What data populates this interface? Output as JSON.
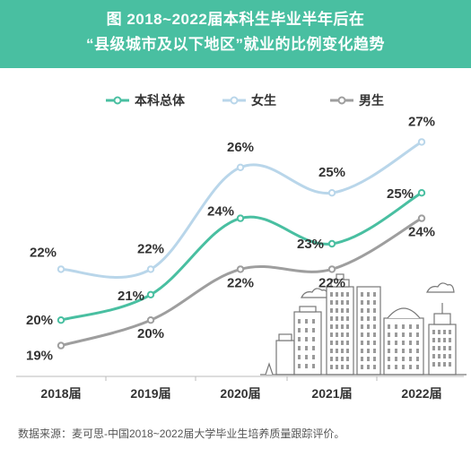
{
  "header": {
    "line1": "图  2018~2022届本科生毕业半年后在",
    "line2": "“县级城市及以下地区”就业的比例变化趋势"
  },
  "chart_data": {
    "type": "line",
    "categories": [
      "2018届",
      "2019届",
      "2020届",
      "2021届",
      "2022届"
    ],
    "series": [
      {
        "name": "本科总体",
        "values": [
          20,
          21,
          24,
          23,
          25
        ],
        "labels": [
          "20%",
          "21%",
          "24%",
          "23%",
          "25%"
        ],
        "color": "#49bfa1"
      },
      {
        "name": "女生",
        "values": [
          22,
          22,
          26,
          25,
          27
        ],
        "labels": [
          "22%",
          "22%",
          "26%",
          "25%",
          "27%"
        ],
        "color": "#b9d6ea"
      },
      {
        "name": "男生",
        "values": [
          19,
          20,
          22,
          22,
          24
        ],
        "labels": [
          "19%",
          "20%",
          "22%",
          "22%",
          "24%"
        ],
        "color": "#9e9e9e"
      }
    ],
    "ylim": [
      18,
      28
    ],
    "grid": false,
    "legend_position": "top-center"
  },
  "footer": {
    "source": "数据来源：麦可思-中国2018~2022届大学毕业生培养质量跟踪评价。"
  }
}
